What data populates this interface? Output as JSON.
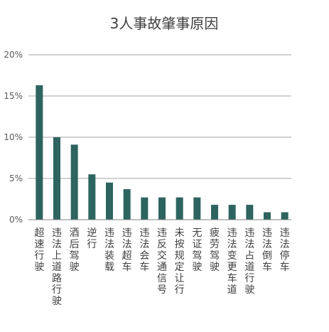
{
  "chart_data": {
    "type": "bar",
    "title": "3人事故肇事原因",
    "categories": [
      "超速行驶",
      "违法上道路行驶",
      "酒后驾驶",
      "逆行",
      "违法装载",
      "违法超车",
      "违法会车",
      "违反交通信号",
      "未按规定让行",
      "无证驾驶",
      "疲劳驾驶",
      "违法变更车道",
      "违法占道行驶",
      "违法倒车",
      "违法停车"
    ],
    "values": [
      16.3,
      10.0,
      9.1,
      5.5,
      4.5,
      3.7,
      2.7,
      2.7,
      2.7,
      2.7,
      1.8,
      1.8,
      1.8,
      0.9,
      0.9
    ],
    "y_ticks": [
      "0%",
      "5%",
      "10%",
      "15%",
      "20%"
    ],
    "ylim": [
      0,
      20
    ],
    "grid": true,
    "bar_color": "#2d6460",
    "grid_color": "#a6a6a6"
  }
}
